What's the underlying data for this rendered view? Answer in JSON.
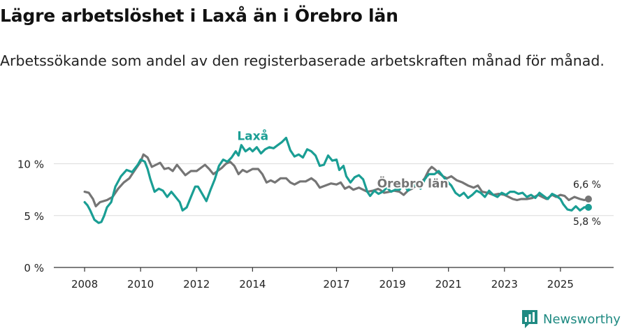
{
  "title": "Lägre arbetslöshet i Laxå än i Örebro län",
  "subtitle": "Arbetssökande som andel av den registerbaserade arbetskraften månad för månad.",
  "brand": {
    "name": "Newsworthy",
    "icon": "newsworthy-logo-icon"
  },
  "colors": {
    "laxa": "#1a9e94",
    "orebro": "#757575",
    "axis": "#333333",
    "grid": "#dcdcdc"
  },
  "chart_data": {
    "type": "line",
    "x_ticks": [
      "2008",
      "2010",
      "2012",
      "2014",
      "2017",
      "2019",
      "2021",
      "2023",
      "2025"
    ],
    "x_tick_years": [
      2008,
      2010,
      2012,
      2014,
      2017,
      2019,
      2021,
      2023,
      2025
    ],
    "y_ticks": [
      "0 %",
      "5 %",
      "10 %"
    ],
    "y_tick_values": [
      0,
      5,
      10
    ],
    "xlim": [
      2006.9,
      2026.9
    ],
    "ylim": [
      0,
      13
    ],
    "grid": true,
    "series": [
      {
        "name": "Laxå",
        "label": "Laxå",
        "end_label": "5,8 %",
        "color": "#1a9e94",
        "points": [
          [
            2008.0,
            6.3
          ],
          [
            2008.1,
            6.0
          ],
          [
            2008.2,
            5.5
          ],
          [
            2008.35,
            4.6
          ],
          [
            2008.5,
            4.3
          ],
          [
            2008.6,
            4.4
          ],
          [
            2008.7,
            5.0
          ],
          [
            2008.8,
            5.8
          ],
          [
            2008.95,
            6.3
          ],
          [
            2009.1,
            7.8
          ],
          [
            2009.3,
            8.8
          ],
          [
            2009.5,
            9.4
          ],
          [
            2009.7,
            9.2
          ],
          [
            2009.9,
            9.9
          ],
          [
            2010.0,
            10.4
          ],
          [
            2010.15,
            10.2
          ],
          [
            2010.25,
            9.5
          ],
          [
            2010.35,
            8.5
          ],
          [
            2010.5,
            7.3
          ],
          [
            2010.65,
            7.6
          ],
          [
            2010.8,
            7.4
          ],
          [
            2010.95,
            6.8
          ],
          [
            2011.1,
            7.3
          ],
          [
            2011.25,
            6.8
          ],
          [
            2011.4,
            6.3
          ],
          [
            2011.5,
            5.5
          ],
          [
            2011.65,
            5.8
          ],
          [
            2011.8,
            6.8
          ],
          [
            2011.95,
            7.8
          ],
          [
            2012.05,
            7.8
          ],
          [
            2012.2,
            7.1
          ],
          [
            2012.35,
            6.4
          ],
          [
            2012.5,
            7.5
          ],
          [
            2012.65,
            8.5
          ],
          [
            2012.8,
            9.8
          ],
          [
            2012.95,
            10.4
          ],
          [
            2013.1,
            10.2
          ],
          [
            2013.25,
            10.6
          ],
          [
            2013.4,
            11.2
          ],
          [
            2013.5,
            10.8
          ],
          [
            2013.6,
            11.8
          ],
          [
            2013.75,
            11.2
          ],
          [
            2013.9,
            11.5
          ],
          [
            2014.0,
            11.2
          ],
          [
            2014.15,
            11.6
          ],
          [
            2014.3,
            11.0
          ],
          [
            2014.45,
            11.4
          ],
          [
            2014.6,
            11.6
          ],
          [
            2014.75,
            11.5
          ],
          [
            2014.9,
            11.8
          ],
          [
            2015.05,
            12.1
          ],
          [
            2015.2,
            12.5
          ],
          [
            2015.35,
            11.3
          ],
          [
            2015.5,
            10.7
          ],
          [
            2015.65,
            10.9
          ],
          [
            2015.8,
            10.6
          ],
          [
            2015.95,
            11.4
          ],
          [
            2016.1,
            11.2
          ],
          [
            2016.25,
            10.8
          ],
          [
            2016.4,
            9.8
          ],
          [
            2016.55,
            9.9
          ],
          [
            2016.7,
            10.8
          ],
          [
            2016.85,
            10.3
          ],
          [
            2017.0,
            10.4
          ],
          [
            2017.1,
            9.4
          ],
          [
            2017.25,
            9.8
          ],
          [
            2017.35,
            8.8
          ],
          [
            2017.5,
            8.2
          ],
          [
            2017.65,
            8.7
          ],
          [
            2017.8,
            8.9
          ],
          [
            2017.95,
            8.5
          ],
          [
            2018.1,
            7.3
          ],
          [
            2018.2,
            6.9
          ],
          [
            2018.35,
            7.4
          ],
          [
            2018.5,
            7.1
          ],
          [
            2018.65,
            7.3
          ],
          [
            2018.8,
            7.7
          ],
          [
            2018.95,
            7.3
          ],
          [
            2019.1,
            7.5
          ],
          [
            2019.25,
            7.5
          ],
          [
            2019.4,
            8.0
          ],
          [
            2019.55,
            7.4
          ],
          [
            2019.7,
            7.8
          ],
          [
            2019.85,
            8.0
          ],
          [
            2020.0,
            7.6
          ],
          [
            2020.15,
            8.5
          ],
          [
            2020.3,
            9.0
          ],
          [
            2020.5,
            9.0
          ],
          [
            2020.65,
            9.3
          ],
          [
            2020.8,
            8.8
          ],
          [
            2020.95,
            8.3
          ],
          [
            2021.1,
            7.9
          ],
          [
            2021.25,
            7.2
          ],
          [
            2021.4,
            6.9
          ],
          [
            2021.55,
            7.2
          ],
          [
            2021.7,
            6.7
          ],
          [
            2021.85,
            7.0
          ],
          [
            2022.0,
            7.4
          ],
          [
            2022.15,
            7.2
          ],
          [
            2022.3,
            6.8
          ],
          [
            2022.45,
            7.4
          ],
          [
            2022.6,
            7.0
          ],
          [
            2022.75,
            6.8
          ],
          [
            2022.9,
            7.2
          ],
          [
            2023.05,
            7.0
          ],
          [
            2023.2,
            7.3
          ],
          [
            2023.35,
            7.3
          ],
          [
            2023.5,
            7.1
          ],
          [
            2023.65,
            7.2
          ],
          [
            2023.8,
            6.8
          ],
          [
            2023.95,
            7.0
          ],
          [
            2024.1,
            6.7
          ],
          [
            2024.25,
            7.2
          ],
          [
            2024.4,
            6.9
          ],
          [
            2024.55,
            6.6
          ],
          [
            2024.7,
            7.1
          ],
          [
            2024.85,
            6.9
          ],
          [
            2025.0,
            6.6
          ],
          [
            2025.1,
            6.1
          ],
          [
            2025.25,
            5.6
          ],
          [
            2025.4,
            5.5
          ],
          [
            2025.55,
            5.9
          ],
          [
            2025.7,
            5.5
          ],
          [
            2025.85,
            5.8
          ],
          [
            2026.0,
            5.8
          ]
        ]
      },
      {
        "name": "Örebro län",
        "label": "Örebro län",
        "end_label": "6,6 %",
        "color": "#757575",
        "points": [
          [
            2008.0,
            7.3
          ],
          [
            2008.15,
            7.2
          ],
          [
            2008.3,
            6.6
          ],
          [
            2008.4,
            5.9
          ],
          [
            2008.55,
            6.3
          ],
          [
            2008.8,
            6.5
          ],
          [
            2009.0,
            6.8
          ],
          [
            2009.2,
            7.6
          ],
          [
            2009.4,
            8.2
          ],
          [
            2009.6,
            8.6
          ],
          [
            2009.8,
            9.4
          ],
          [
            2010.0,
            10.2
          ],
          [
            2010.1,
            10.9
          ],
          [
            2010.25,
            10.6
          ],
          [
            2010.4,
            9.7
          ],
          [
            2010.55,
            9.9
          ],
          [
            2010.7,
            10.1
          ],
          [
            2010.85,
            9.5
          ],
          [
            2011.0,
            9.6
          ],
          [
            2011.15,
            9.3
          ],
          [
            2011.3,
            9.9
          ],
          [
            2011.45,
            9.4
          ],
          [
            2011.6,
            8.9
          ],
          [
            2011.8,
            9.3
          ],
          [
            2012.0,
            9.3
          ],
          [
            2012.15,
            9.6
          ],
          [
            2012.3,
            9.9
          ],
          [
            2012.45,
            9.5
          ],
          [
            2012.6,
            9.0
          ],
          [
            2012.75,
            9.3
          ],
          [
            2012.9,
            9.6
          ],
          [
            2013.05,
            10.0
          ],
          [
            2013.2,
            10.2
          ],
          [
            2013.35,
            9.8
          ],
          [
            2013.5,
            9.0
          ],
          [
            2013.65,
            9.4
          ],
          [
            2013.8,
            9.2
          ],
          [
            2014.0,
            9.5
          ],
          [
            2014.2,
            9.5
          ],
          [
            2014.35,
            9.0
          ],
          [
            2014.5,
            8.2
          ],
          [
            2014.65,
            8.4
          ],
          [
            2014.8,
            8.2
          ],
          [
            2015.0,
            8.6
          ],
          [
            2015.2,
            8.6
          ],
          [
            2015.35,
            8.2
          ],
          [
            2015.5,
            8.0
          ],
          [
            2015.7,
            8.3
          ],
          [
            2015.9,
            8.3
          ],
          [
            2016.1,
            8.6
          ],
          [
            2016.25,
            8.3
          ],
          [
            2016.4,
            7.7
          ],
          [
            2016.6,
            7.9
          ],
          [
            2016.8,
            8.1
          ],
          [
            2017.0,
            8.0
          ],
          [
            2017.15,
            8.2
          ],
          [
            2017.3,
            7.6
          ],
          [
            2017.45,
            7.8
          ],
          [
            2017.6,
            7.5
          ],
          [
            2017.8,
            7.7
          ],
          [
            2017.95,
            7.5
          ],
          [
            2018.1,
            7.3
          ],
          [
            2018.3,
            7.4
          ],
          [
            2018.5,
            7.6
          ],
          [
            2018.7,
            7.2
          ],
          [
            2018.9,
            7.3
          ],
          [
            2019.05,
            7.4
          ],
          [
            2019.25,
            7.3
          ],
          [
            2019.4,
            7.0
          ],
          [
            2019.55,
            7.4
          ],
          [
            2019.7,
            7.6
          ],
          [
            2019.85,
            7.9
          ],
          [
            2020.0,
            8.1
          ],
          [
            2020.15,
            8.6
          ],
          [
            2020.3,
            9.4
          ],
          [
            2020.4,
            9.7
          ],
          [
            2020.5,
            9.5
          ],
          [
            2020.65,
            9.1
          ],
          [
            2020.8,
            8.8
          ],
          [
            2020.95,
            8.6
          ],
          [
            2021.1,
            8.8
          ],
          [
            2021.3,
            8.4
          ],
          [
            2021.5,
            8.2
          ],
          [
            2021.7,
            7.9
          ],
          [
            2021.9,
            7.7
          ],
          [
            2022.05,
            7.9
          ],
          [
            2022.2,
            7.3
          ],
          [
            2022.4,
            7.2
          ],
          [
            2022.6,
            7.0
          ],
          [
            2022.8,
            7.1
          ],
          [
            2023.0,
            7.0
          ],
          [
            2023.15,
            6.8
          ],
          [
            2023.3,
            6.6
          ],
          [
            2023.45,
            6.5
          ],
          [
            2023.6,
            6.6
          ],
          [
            2023.8,
            6.6
          ],
          [
            2024.0,
            6.7
          ],
          [
            2024.2,
            7.0
          ],
          [
            2024.35,
            6.8
          ],
          [
            2024.5,
            6.6
          ],
          [
            2024.7,
            7.0
          ],
          [
            2024.85,
            6.8
          ],
          [
            2025.0,
            7.0
          ],
          [
            2025.15,
            6.9
          ],
          [
            2025.3,
            6.5
          ],
          [
            2025.5,
            6.8
          ],
          [
            2025.7,
            6.6
          ],
          [
            2025.85,
            6.5
          ],
          [
            2026.0,
            6.6
          ]
        ]
      }
    ]
  }
}
